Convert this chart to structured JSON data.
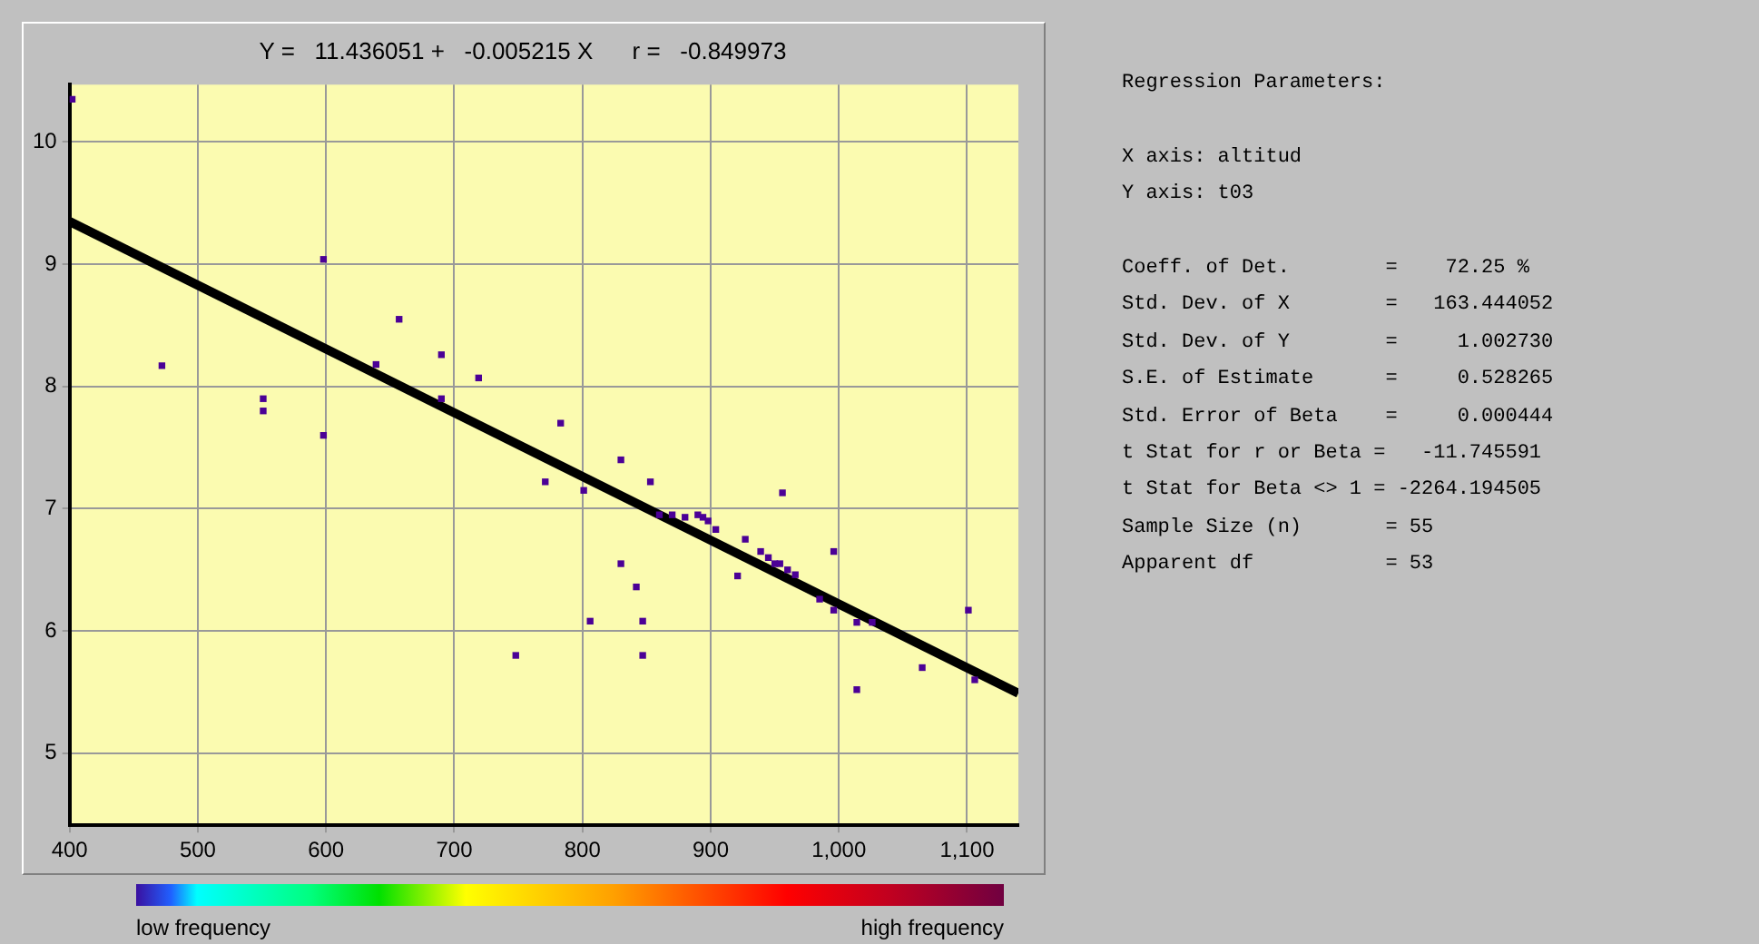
{
  "chart_data": {
    "type": "scatter",
    "title": "Y =   11.436051 +   -0.005215 X      r =   -0.849973",
    "xlim": [
      400,
      1140
    ],
    "ylim": [
      4.41,
      10.47
    ],
    "xticks": [
      400,
      500,
      600,
      700,
      800,
      900,
      {
        "value": 1000,
        "label": "1,000"
      },
      {
        "value": 1100,
        "label": "1,100"
      }
    ],
    "yticks": [
      5,
      6,
      7,
      8,
      9,
      10
    ],
    "grid": true,
    "legend": false,
    "marker": "square",
    "series": [
      {
        "color": "#4b0096",
        "x": [
          402,
          472,
          551,
          551,
          598,
          598,
          639,
          657,
          690,
          690,
          719,
          783,
          771,
          801,
          830,
          853,
          830,
          842,
          806,
          847,
          847,
          748,
          880,
          890,
          894,
          898,
          904,
          927,
          921,
          939,
          945,
          950,
          954,
          960,
          966,
          956,
          985,
          996,
          996,
          1014,
          1026,
          1014,
          1065,
          1101,
          1106,
          860,
          870
        ],
        "values": [
          10.35,
          8.17,
          7.9,
          7.8,
          9.04,
          7.6,
          8.18,
          8.55,
          8.26,
          7.9,
          8.07,
          7.7,
          7.22,
          7.15,
          7.4,
          7.22,
          6.55,
          6.36,
          6.08,
          6.08,
          5.8,
          5.8,
          6.93,
          6.95,
          6.93,
          6.9,
          6.83,
          6.75,
          6.45,
          6.65,
          6.6,
          6.55,
          6.55,
          6.5,
          6.46,
          7.13,
          6.26,
          6.65,
          6.17,
          6.07,
          6.07,
          5.52,
          5.7,
          6.17,
          5.6,
          6.95,
          6.95
        ]
      },
      {
        "type": "line",
        "color": "#000000",
        "x": [
          400,
          1140
        ],
        "values": [
          9.35,
          5.49
        ],
        "marker": "none"
      }
    ],
    "annotations": [
      "Regression Parameters:",
      "X axis: altitud",
      "Y axis: t03",
      "Coeff. of Det.        =    72.25 %",
      "Std. Dev. of X        =   163.444052",
      "Std. Dev. of Y        =     1.002730",
      "S.E. of Estimate      =     0.528265",
      "Std. Error of Beta    =     0.000444",
      "t Stat for r or Beta =   -11.745591",
      "t Stat for Beta <> 1 = -2264.194505",
      "Sample Size (n)       = 55",
      "Apparent df           = 53",
      "low frequency",
      "high frequency"
    ]
  }
}
